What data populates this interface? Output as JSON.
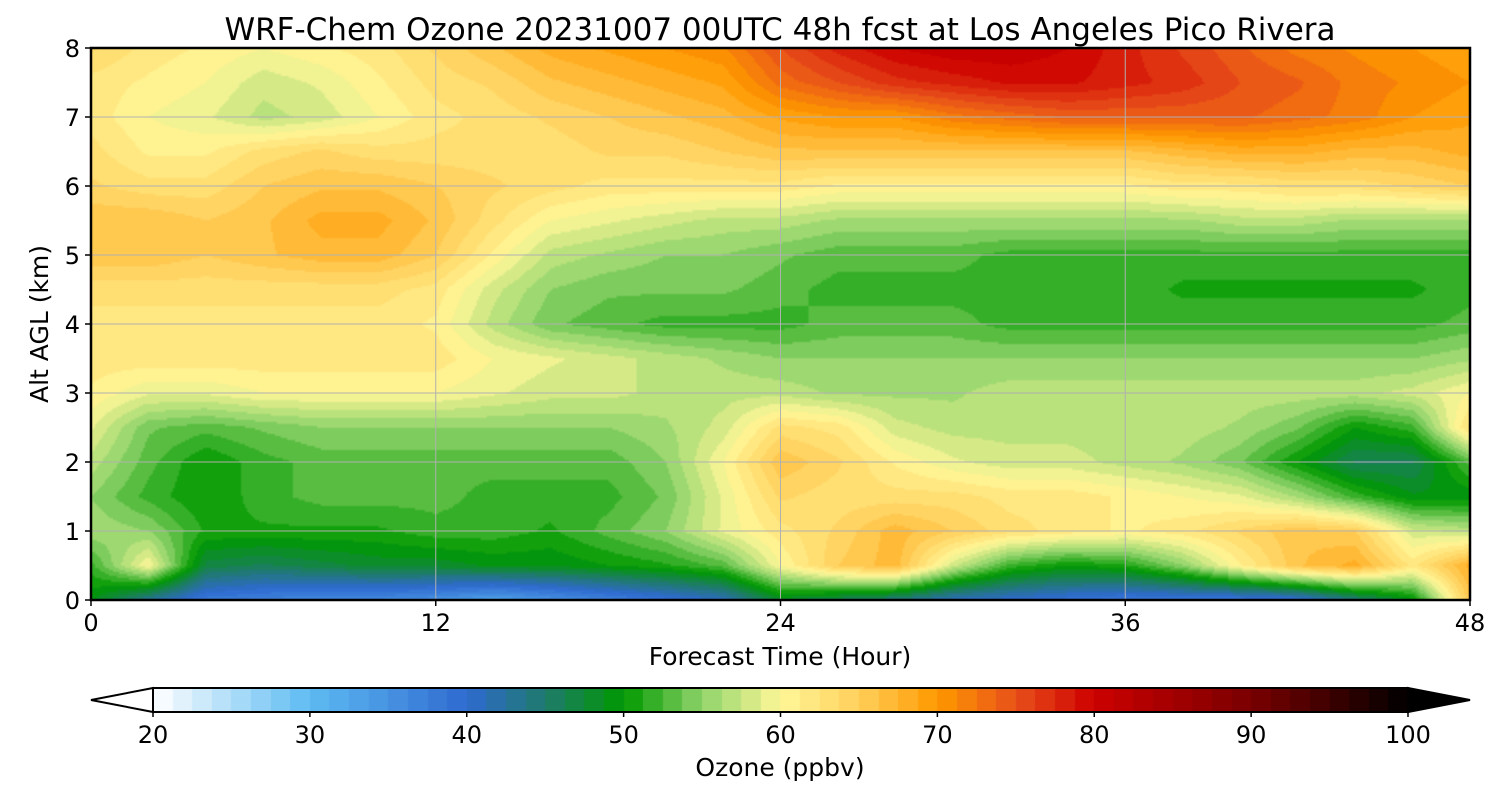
{
  "chart_data": {
    "type": "heatmap",
    "title": "WRF-Chem Ozone  20231007 00UTC 48h fcst at Los Angeles Pico Rivera",
    "xlabel": "Forecast Time (Hour)",
    "ylabel": "Alt AGL (km)",
    "xlim": [
      0,
      48
    ],
    "ylim": [
      0,
      8
    ],
    "xticks": [
      0,
      12,
      24,
      36,
      48
    ],
    "yticks": [
      0,
      1,
      2,
      3,
      4,
      5,
      6,
      7,
      8
    ],
    "grid": true,
    "x": [
      0,
      2,
      4,
      6,
      8,
      10,
      12,
      14,
      16,
      18,
      20,
      22,
      24,
      26,
      28,
      30,
      32,
      34,
      36,
      38,
      40,
      42,
      44,
      46,
      48
    ],
    "y": [
      0,
      0.5,
      1,
      1.5,
      2,
      2.5,
      3,
      3.5,
      4,
      4.5,
      5,
      5.5,
      6,
      6.5,
      7,
      7.5,
      8
    ],
    "z": [
      [
        49,
        43,
        38,
        37,
        36,
        36,
        35,
        33,
        35,
        37,
        39,
        41,
        48,
        46,
        44,
        41,
        40,
        39,
        38,
        38,
        38,
        39,
        44,
        49,
        66
      ],
      [
        52,
        60,
        47,
        46,
        47,
        48,
        48,
        49,
        49,
        50,
        51,
        53,
        60,
        65,
        67,
        58,
        52,
        50,
        51,
        55,
        61,
        66,
        68,
        62,
        68
      ],
      [
        56,
        55,
        51,
        51,
        51,
        51,
        52,
        52,
        51,
        53,
        55,
        59,
        62,
        64,
        67,
        65,
        63,
        62,
        61,
        62,
        64,
        66,
        65,
        58,
        57
      ],
      [
        55,
        52,
        50,
        52,
        53,
        53,
        53,
        52,
        52,
        52,
        54,
        59,
        64,
        63,
        63,
        63,
        62,
        62,
        61,
        60,
        59,
        56,
        52,
        49,
        49
      ],
      [
        57,
        53,
        50,
        52,
        53,
        53,
        53,
        53,
        53,
        53,
        55,
        60,
        66,
        64,
        61,
        59,
        58,
        58,
        57,
        56,
        54,
        50,
        46,
        46,
        53
      ],
      [
        59,
        54,
        53,
        54,
        55,
        55,
        55,
        55,
        55,
        55,
        56,
        58,
        63,
        62,
        58,
        57,
        57,
        57,
        57,
        57,
        56,
        54,
        50,
        52,
        63
      ],
      [
        61,
        59,
        59,
        60,
        60,
        60,
        60,
        59,
        58,
        58,
        57,
        57,
        57,
        56,
        56,
        56,
        57,
        57,
        57,
        57,
        57,
        57,
        57,
        58,
        60
      ],
      [
        62,
        62,
        62,
        62,
        62,
        62,
        62,
        60,
        59,
        58,
        57,
        56,
        55,
        55,
        55,
        55,
        55,
        55,
        55,
        55,
        55,
        55,
        55,
        55,
        56
      ],
      [
        62,
        62,
        62,
        62,
        62,
        62,
        61,
        57,
        54,
        53,
        52,
        52,
        52,
        53,
        53,
        53,
        52,
        52,
        52,
        52,
        52,
        52,
        52,
        52,
        53
      ],
      [
        63,
        63,
        63,
        63,
        63,
        63,
        62,
        58,
        55,
        54,
        54,
        54,
        53,
        52,
        52,
        52,
        52,
        52,
        52,
        51,
        51,
        51,
        51,
        51,
        52
      ],
      [
        66,
        66,
        65,
        66,
        67,
        67,
        65,
        61,
        57,
        56,
        55,
        55,
        54,
        53,
        53,
        53,
        52,
        52,
        52,
        52,
        52,
        52,
        52,
        52,
        52
      ],
      [
        66,
        66,
        65,
        66,
        68,
        68,
        66,
        63,
        60,
        59,
        58,
        57,
        57,
        56,
        56,
        56,
        56,
        56,
        56,
        56,
        57,
        57,
        56,
        56,
        56
      ],
      [
        64,
        63,
        63,
        65,
        66,
        66,
        65,
        64,
        63,
        62,
        62,
        62,
        62,
        61,
        61,
        61,
        61,
        61,
        61,
        62,
        62,
        63,
        63,
        64,
        65
      ],
      [
        63,
        61,
        61,
        63,
        64,
        63,
        63,
        63,
        63,
        64,
        64,
        65,
        66,
        66,
        66,
        66,
        66,
        66,
        66,
        67,
        68,
        68,
        67,
        67,
        68
      ],
      [
        62,
        60,
        59,
        57,
        58,
        60,
        62,
        63,
        64,
        65,
        66,
        67,
        69,
        70,
        70,
        72,
        73,
        74,
        74,
        74,
        74,
        73,
        72,
        70,
        69
      ],
      [
        62,
        61,
        60,
        58,
        59,
        61,
        63,
        64,
        66,
        67,
        68,
        69,
        73,
        75,
        77,
        78,
        79,
        79,
        78,
        77,
        75,
        74,
        72,
        71,
        70
      ],
      [
        64,
        62,
        61,
        60,
        61,
        62,
        64,
        66,
        68,
        69,
        70,
        71,
        75,
        78,
        80,
        81,
        81,
        80,
        78,
        76,
        74,
        72,
        71,
        70,
        69
      ]
    ],
    "colorbar": {
      "label": "Ozone  (ppbv)",
      "min": 20,
      "max": 100,
      "ticks": [
        20,
        30,
        40,
        50,
        60,
        70,
        80,
        90,
        100
      ],
      "extend": "both",
      "color_stops": [
        [
          20,
          "#ffffff"
        ],
        [
          30,
          "#5ebbf2"
        ],
        [
          40,
          "#2f6ad0"
        ],
        [
          45,
          "#1f7a6c"
        ],
        [
          50,
          "#009900"
        ],
        [
          55,
          "#8fd36a"
        ],
        [
          60,
          "#fff799"
        ],
        [
          65,
          "#ffcf5a"
        ],
        [
          70,
          "#ff9900"
        ],
        [
          75,
          "#e8501a"
        ],
        [
          80,
          "#cc0000"
        ],
        [
          90,
          "#7a0000"
        ],
        [
          100,
          "#000000"
        ]
      ],
      "under_color": "#ffffff",
      "over_color": "#000000"
    }
  }
}
